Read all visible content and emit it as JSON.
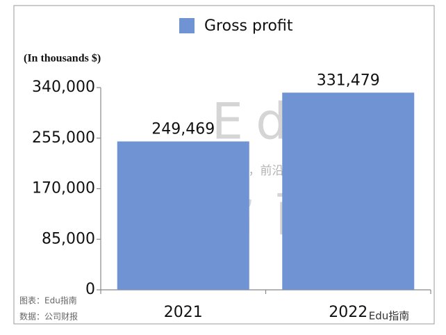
{
  "chart_data": {
    "type": "bar",
    "legend_label": "Gross profit",
    "y_axis_label": "(In thousands $)",
    "categories": [
      "2021",
      "2022"
    ],
    "values": [
      249469,
      331479
    ],
    "value_labels": [
      "249,469",
      "331,479"
    ],
    "color": "#6f93d3",
    "ylim": [
      0,
      340000
    ],
    "yticks": [
      0,
      {
        "value": 85000,
        "label": "85,000"
      },
      {
        "value": 170000,
        "label": "170,000"
      },
      {
        "value": 255000,
        "label": "255,000"
      },
      {
        "value": 340000,
        "label": "340,000"
      }
    ],
    "grid": false,
    "watermark": [
      "Edu",
      "教育行业，前沿、深度、独家",
      "指南"
    ],
    "notes": [
      "图表：Edu指南",
      "数据：公司财报",
      "Edu指南"
    ]
  }
}
